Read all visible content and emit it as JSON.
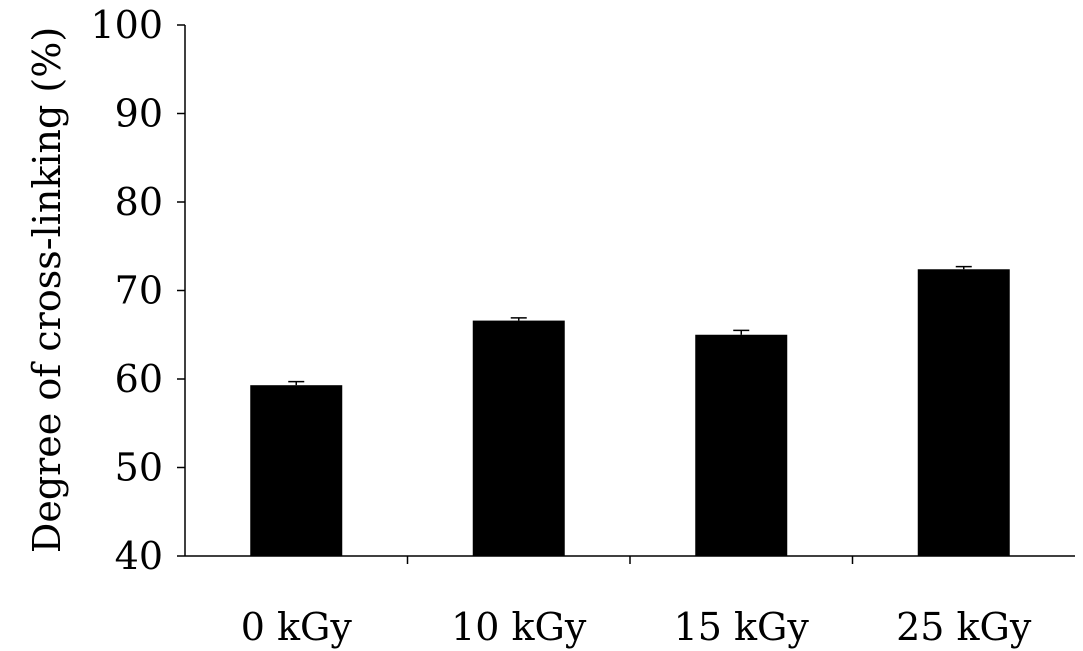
{
  "chart_data": {
    "type": "bar",
    "title": "",
    "xlabel": "",
    "ylabel": "Degree of cross-linking (%)",
    "categories": [
      "0 kGy",
      "10 kGy",
      "15 kGy",
      "25 kGy"
    ],
    "values": [
      59.3,
      66.6,
      65.0,
      72.4
    ],
    "errors": [
      0.4,
      0.3,
      0.5,
      0.3
    ],
    "ylim": [
      40,
      100
    ],
    "yticks": [
      40,
      50,
      60,
      70,
      80,
      90,
      100
    ],
    "grid": false,
    "legend": "none",
    "colors": {
      "bar": "#000000",
      "axis": "#000000",
      "background": "#ffffff"
    }
  }
}
